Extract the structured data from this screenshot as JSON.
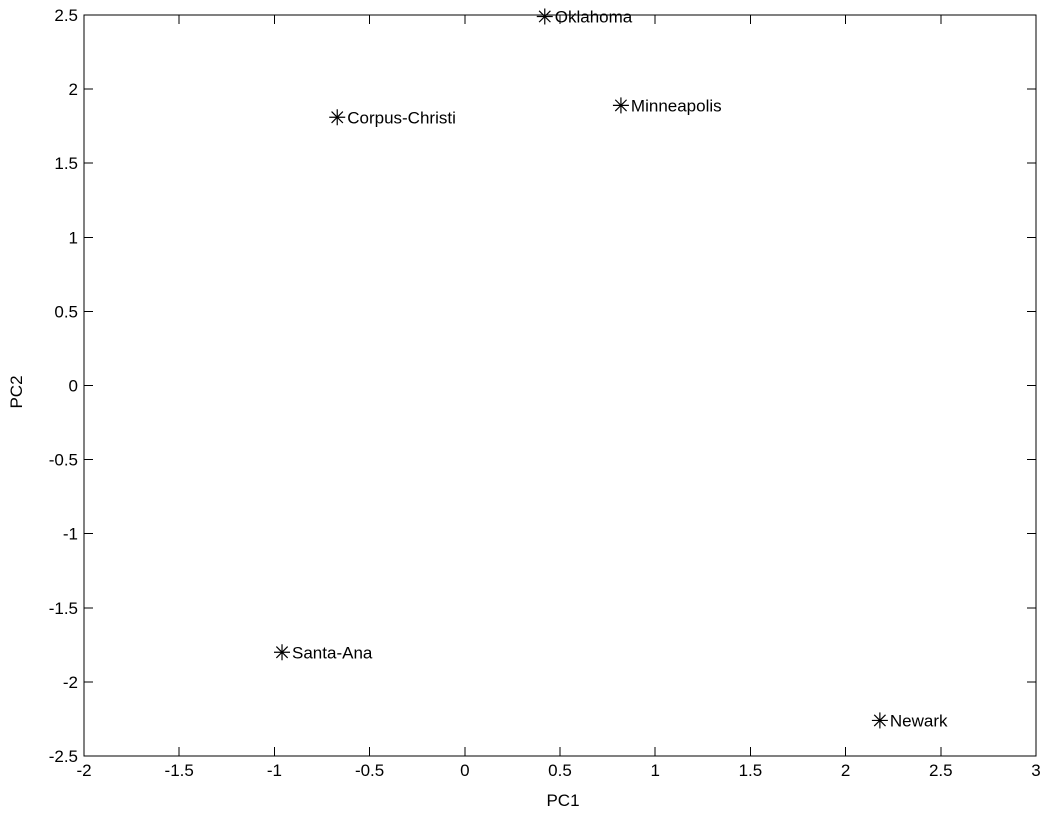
{
  "chart_data": {
    "type": "scatter",
    "title": "",
    "xlabel": "PC1",
    "ylabel": "PC2",
    "xlim": [
      -2,
      3
    ],
    "ylim": [
      -2.5,
      2.5
    ],
    "xticks": [
      -2,
      -1.5,
      -1,
      -0.5,
      0,
      0.5,
      1,
      1.5,
      2,
      2.5,
      3
    ],
    "yticks": [
      -2.5,
      -2,
      -1.5,
      -1,
      -0.5,
      0,
      0.5,
      1,
      1.5,
      2,
      2.5
    ],
    "xtick_labels": [
      "-2",
      "-1.5",
      "-1",
      "-0.5",
      "0",
      "0.5",
      "1",
      "1.5",
      "2",
      "2.5",
      "3"
    ],
    "ytick_labels": [
      "-2.5",
      "-2",
      "-1.5",
      "-1",
      "-0.5",
      "0",
      "0.5",
      "1",
      "1.5",
      "2",
      "2.5"
    ],
    "grid": false,
    "marker": "asterisk",
    "marker_color": "#000000",
    "points": [
      {
        "label": "Oklahoma",
        "x": 0.42,
        "y": 2.49
      },
      {
        "label": "Corpus-Christi",
        "x": -0.67,
        "y": 1.81
      },
      {
        "label": "Minneapolis",
        "x": 0.82,
        "y": 1.89
      },
      {
        "label": "Santa-Ana",
        "x": -0.96,
        "y": -1.8
      },
      {
        "label": "Newark",
        "x": 2.18,
        "y": -2.26
      }
    ]
  }
}
